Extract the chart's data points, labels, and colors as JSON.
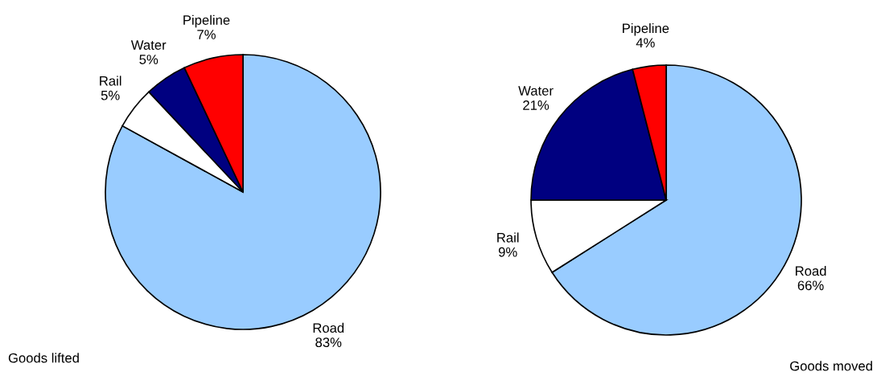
{
  "chart_data": [
    {
      "type": "pie",
      "title": "Goods lifted",
      "categories": [
        "Road",
        "Rail",
        "Water",
        "Pipeline"
      ],
      "values": [
        83,
        5,
        5,
        7
      ],
      "value_labels": [
        "83%",
        "5%",
        "5%",
        "7%"
      ],
      "colors": [
        "#99ccff",
        "#ffffff",
        "#000080",
        "#ff0000"
      ],
      "legend": false
    },
    {
      "type": "pie",
      "title": "Goods moved",
      "categories": [
        "Road",
        "Rail",
        "Water",
        "Pipeline"
      ],
      "values": [
        66,
        9,
        21,
        4
      ],
      "value_labels": [
        "66%",
        "9%",
        "21%",
        "4%"
      ],
      "colors": [
        "#99ccff",
        "#ffffff",
        "#000080",
        "#ff0000"
      ],
      "legend": false
    }
  ]
}
